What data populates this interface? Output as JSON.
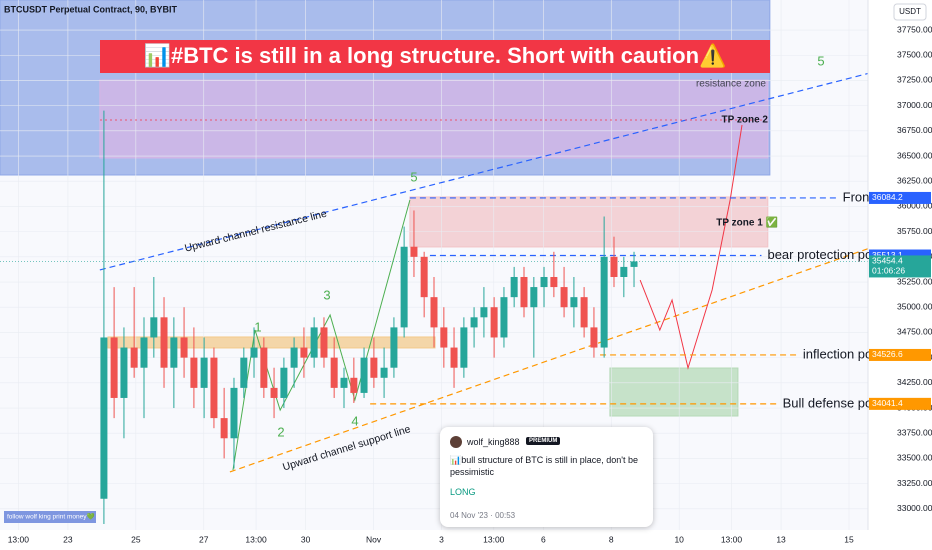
{
  "chart_data": {
    "type": "candlestick",
    "symbol": "BTCUSDT Perpetual Contract, 90, BYBIT",
    "currency": "USDT",
    "title": "📊#BTC is still in a long structure. Short with caution⚠️",
    "x": [
      2.06,
      2.36,
      2.65,
      2.95,
      3.24,
      3.53,
      3.83,
      4.12,
      4.42,
      4.71,
      5.01,
      5.3,
      5.6,
      5.89,
      6.18,
      6.48,
      6.77,
      7.07,
      7.36,
      7.66,
      7.95,
      8.25,
      8.54,
      8.84,
      9.13,
      9.42,
      9.72,
      10.01,
      10.31,
      10.6,
      10.9,
      11.19,
      11.49,
      11.78,
      12.07,
      12.37,
      12.66,
      12.96,
      13.25,
      13.55,
      13.84,
      14.14,
      14.43,
      14.72,
      15.02,
      15.31,
      15.61,
      15.9,
      16.2,
      16.49,
      16.79,
      17.08,
      17.37,
      17.67
    ],
    "open": [
      33100,
      34700,
      34100,
      34600,
      34400,
      34700,
      34900,
      34400,
      34700,
      34500,
      34200,
      34500,
      33900,
      33700,
      34200,
      34500,
      34600,
      34200,
      34100,
      34400,
      34600,
      34500,
      34800,
      34500,
      34200,
      34300,
      34150,
      34500,
      34300,
      34400,
      34800,
      35600,
      35500,
      35100,
      34800,
      34600,
      34400,
      34800,
      34900,
      35000,
      34700,
      35100,
      35300,
      35000,
      35200,
      35300,
      35200,
      35000,
      35100,
      34800,
      34600,
      35500,
      35300,
      35400
    ],
    "high": [
      36950,
      35200,
      34800,
      35200,
      34900,
      35300,
      35100,
      34900,
      35000,
      34800,
      34700,
      34600,
      34200,
      34300,
      34600,
      34800,
      34700,
      34400,
      34500,
      34700,
      34800,
      34900,
      34900,
      34700,
      34400,
      34500,
      34600,
      34700,
      34600,
      34900,
      35800,
      35960,
      35550,
      35300,
      35000,
      34800,
      34900,
      35000,
      35200,
      35100,
      35200,
      35400,
      35400,
      35300,
      35400,
      35550,
      35400,
      35300,
      35200,
      35000,
      35900,
      35700,
      35500,
      35550
    ],
    "low": [
      32850,
      33900,
      33700,
      34300,
      33900,
      34500,
      34200,
      34000,
      34300,
      34000,
      33900,
      33800,
      33500,
      33400,
      34100,
      34300,
      34100,
      33900,
      34000,
      34200,
      34300,
      34400,
      34400,
      34100,
      34000,
      34050,
      34100,
      34200,
      34100,
      34300,
      34700,
      35300,
      34900,
      34600,
      34400,
      34200,
      34300,
      34600,
      34700,
      34500,
      34600,
      35000,
      34900,
      34500,
      35000,
      35100,
      34900,
      34800,
      34700,
      34500,
      34500,
      35200,
      35100,
      35200
    ],
    "close": [
      34700,
      34100,
      34600,
      34400,
      34700,
      34900,
      34400,
      34700,
      34500,
      34200,
      34500,
      33900,
      33700,
      34200,
      34500,
      34600,
      34200,
      34100,
      34400,
      34600,
      34500,
      34800,
      34500,
      34200,
      34300,
      34150,
      34500,
      34300,
      34400,
      34800,
      35600,
      35500,
      35100,
      34800,
      34600,
      34400,
      34800,
      34900,
      35000,
      34700,
      35100,
      35300,
      35000,
      35200,
      35300,
      35200,
      35000,
      35100,
      34800,
      34600,
      35500,
      35300,
      35400,
      35454.4
    ],
    "up_color": "#26a69a",
    "down_color": "#ef5350",
    "xlim": [
      -1,
      24.56
    ],
    "xticks": [
      {
        "value": -0.46,
        "label": "13:00"
      },
      {
        "value": 1,
        "label": "23"
      },
      {
        "value": 3,
        "label": "25"
      },
      {
        "value": 5,
        "label": "27"
      },
      {
        "value": 6.54,
        "label": "13:00"
      },
      {
        "value": 8,
        "label": "30"
      },
      {
        "value": 10,
        "label": "Nov"
      },
      {
        "value": 12,
        "label": "3"
      },
      {
        "value": 13.54,
        "label": "13:00"
      },
      {
        "value": 15,
        "label": "6"
      },
      {
        "value": 17,
        "label": "8"
      },
      {
        "value": 19,
        "label": "10"
      },
      {
        "value": 20.54,
        "label": "13:00"
      },
      {
        "value": 22,
        "label": "13"
      },
      {
        "value": 24,
        "label": "15"
      }
    ],
    "ylim": [
      32790,
      38048
    ],
    "yticks": [
      {
        "value": 33000,
        "label": "33000.00"
      },
      {
        "value": 33250,
        "label": "33250.00"
      },
      {
        "value": 33500,
        "label": "33500.00"
      },
      {
        "value": 33750,
        "label": "33750.00"
      },
      {
        "value": 34000,
        "label": "34000.00"
      },
      {
        "value": 34250,
        "label": "34250.00"
      },
      {
        "value": 34500,
        "label": "34500.00"
      },
      {
        "value": 34750,
        "label": "34750.00"
      },
      {
        "value": 35000,
        "label": "35000.00"
      },
      {
        "value": 35250,
        "label": "35250.00"
      },
      {
        "value": 35500,
        "label": "35500.00"
      },
      {
        "value": 35750,
        "label": "35750.00"
      },
      {
        "value": 36000,
        "label": "36000.00"
      },
      {
        "value": 36250,
        "label": "36250.00"
      },
      {
        "value": 36500,
        "label": "36500.00"
      },
      {
        "value": 36750,
        "label": "36750.00"
      },
      {
        "value": 37000,
        "label": "37000.00"
      },
      {
        "value": 37250,
        "label": "37250.00"
      },
      {
        "value": 37500,
        "label": "37500.00"
      },
      {
        "value": 37750,
        "label": "37750.00"
      }
    ],
    "grid": true,
    "zones": [
      {
        "x": [
          -1,
          21.67
        ],
        "y": [
          36312,
          38048
        ],
        "color": "#8fa7e6"
      },
      {
        "name": "resistance zone",
        "x": [
          1.94,
          21.61
        ],
        "y": [
          36481,
          37254
        ],
        "color": "#d7b6e6"
      },
      {
        "name": "TP zone 1 ✅",
        "x": [
          11.07,
          21.61
        ],
        "y": [
          35598,
          36094
        ],
        "color": "#f2c4c8"
      },
      {
        "x": [
          16.96,
          20.73
        ],
        "y": [
          33921,
          34397
        ],
        "color": "#b5d9b7"
      },
      {
        "x": [
          2.18,
          11.81
        ],
        "y": [
          34596,
          34705
        ],
        "color": "#f3c98b"
      }
    ],
    "tp_zone_2": "TP zone 2",
    "levels": [
      {
        "name": "Front H",
        "value": 36084.2,
        "from": 11.07,
        "color": "#2962ff"
      },
      {
        "name": "bear protection point",
        "value": 35513.1,
        "from": 11.66,
        "color": "#2962ff"
      },
      {
        "name": "inflection point",
        "value": 34526.6,
        "from": 16.67,
        "color": "#ff9800"
      },
      {
        "name": "Bull defense point",
        "value": 34041.4,
        "from": 9.9,
        "color": "#ff9800"
      }
    ],
    "last_price": 35454.4,
    "countdown": "01:06:26",
    "trendlines": [
      {
        "name": "Upward channel resistance line",
        "x": [
          1.94,
          24.62
        ],
        "y": [
          35370,
          37324
        ],
        "color": "#2962ff"
      },
      {
        "name": "Upward channel support line",
        "x": [
          5.77,
          24.62
        ],
        "y": [
          33366,
          35588
        ],
        "color": "#ff9800"
      }
    ],
    "waves": {
      "labels": [
        "1",
        "2",
        "3",
        "4",
        "5",
        "5"
      ],
      "x": [
        5.86,
        6.51,
        7.25,
        8.72,
        9.45,
        11.07
      ],
      "y": [
        33385,
        34774,
        33980,
        34923,
        34080,
        36064
      ],
      "color": "#4caf50"
    },
    "projection": {
      "x": [
        17.85,
        18.43,
        18.79,
        19.26,
        19.97,
        20.5,
        20.85
      ],
      "y": [
        35270,
        34774,
        35072,
        34397,
        35171,
        36064,
        36808
      ],
      "color": "#f23645"
    },
    "note": {
      "author": "wolf_king888",
      "badge": "PREMIUM",
      "text": "📊bull structure of BTC is still in place, don't be pessimistic",
      "signal": "LONG",
      "time": "04 Nov '23 · 00:53"
    },
    "footer_note": "follow wolf king print money💚"
  }
}
